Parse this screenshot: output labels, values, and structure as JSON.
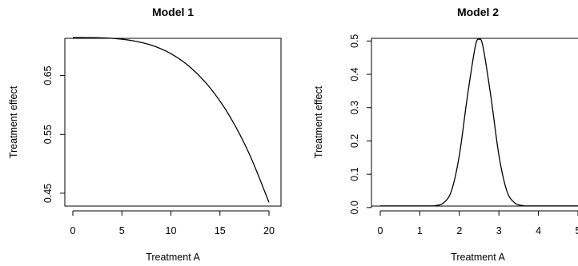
{
  "chart_data": [
    {
      "type": "line",
      "title": "Model 1",
      "xlabel": "Treatment A",
      "ylabel": "Treatment effect",
      "xlim": [
        0,
        20
      ],
      "ylim": [
        0.42,
        0.72
      ],
      "xticks": [
        0,
        5,
        10,
        15,
        20
      ],
      "xtick_labels": [
        "0",
        "5",
        "10",
        "15",
        "20"
      ],
      "yticks": [
        0.45,
        0.55,
        0.65
      ],
      "ytick_labels": [
        "0.45",
        "0.55",
        "0.65"
      ],
      "grid": false,
      "legend": "none",
      "series": [
        {
          "x": [
            0,
            2,
            4,
            6,
            8,
            10,
            12,
            14,
            16,
            18,
            20
          ],
          "y": [
            0.7145,
            0.7144,
            0.7133,
            0.7095,
            0.7016,
            0.6871,
            0.6636,
            0.6289,
            0.5808,
            0.5166,
            0.4345
          ]
        }
      ]
    },
    {
      "type": "line",
      "title": "Model 2",
      "xlabel": "Treatment A",
      "ylabel": "Treatment effect",
      "xlim": [
        0,
        5
      ],
      "ylim": [
        -0.01,
        0.52
      ],
      "xticks": [
        0,
        1,
        2,
        3,
        4,
        5
      ],
      "xtick_labels": [
        "0",
        "1",
        "2",
        "3",
        "4",
        "5"
      ],
      "yticks": [
        0.0,
        0.1,
        0.2,
        0.3,
        0.4,
        0.5
      ],
      "ytick_labels": [
        "0.0",
        "0.1",
        "0.2",
        "0.3",
        "0.4",
        "0.5"
      ],
      "grid": false,
      "legend": "none",
      "series": [
        {
          "x": [
            0,
            1.2,
            1.4,
            1.6,
            1.8,
            2.0,
            2.2,
            2.4,
            2.5,
            2.6,
            2.8,
            3.0,
            3.2,
            3.4,
            3.6,
            3.8,
            5.0
          ],
          "y": [
            0.005,
            0.005,
            0.006,
            0.014,
            0.05,
            0.157,
            0.331,
            0.482,
            0.505,
            0.482,
            0.331,
            0.157,
            0.05,
            0.014,
            0.006,
            0.005,
            0.005
          ]
        }
      ]
    }
  ]
}
